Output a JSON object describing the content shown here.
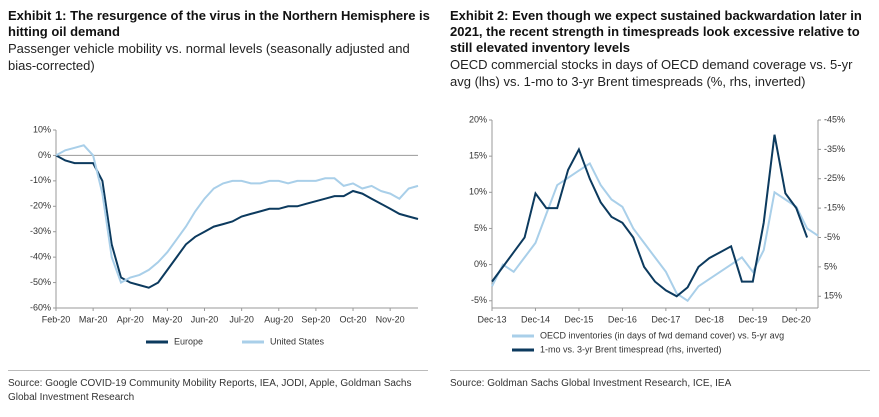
{
  "chart_data": [
    {
      "type": "line",
      "title": "Exhibit 1: The resurgence of the virus in the Northern Hemisphere is hitting oil demand",
      "subtitle": "Passenger vehicle mobility vs. normal levels (seasonally adjusted and bias-corrected)",
      "categories": [
        "Feb-20",
        null,
        null,
        null,
        "Mar-20",
        null,
        null,
        null,
        "Apr-20",
        null,
        null,
        null,
        "May-20",
        null,
        null,
        null,
        "Jun-20",
        null,
        null,
        null,
        "Jul-20",
        null,
        null,
        null,
        "Aug-20",
        null,
        null,
        null,
        "Sep-20",
        null,
        null,
        null,
        "Oct-20",
        null,
        null,
        null,
        "Nov-20",
        null,
        null,
        null
      ],
      "series": [
        {
          "name": "Europe",
          "color": "#0c3a5e",
          "values": [
            0,
            -2,
            -3,
            -3,
            -3,
            -10,
            -35,
            -48,
            -50,
            -51,
            -52,
            -50,
            -45,
            -40,
            -35,
            -32,
            -30,
            -28,
            -27,
            -26,
            -24,
            -23,
            -22,
            -21,
            -21,
            -20,
            -20,
            -19,
            -18,
            -17,
            -16,
            -16,
            -14,
            -15,
            -17,
            -19,
            -21,
            -23,
            -24,
            -25
          ]
        },
        {
          "name": "United States",
          "color": "#a9cfe9",
          "values": [
            0,
            2,
            3,
            4,
            0,
            -15,
            -40,
            -50,
            -48,
            -47,
            -45,
            -42,
            -38,
            -33,
            -28,
            -22,
            -17,
            -13,
            -11,
            -10,
            -10,
            -11,
            -11,
            -10,
            -10,
            -11,
            -10,
            -10,
            -10,
            -9,
            -9,
            -12,
            -11,
            -13,
            -12,
            -14,
            -15,
            -17,
            -13,
            -12
          ]
        }
      ],
      "ylim": [
        -60,
        10
      ],
      "yticks": [
        {
          "value": -60,
          "label": "-60%"
        },
        {
          "value": -50,
          "label": "-50%"
        },
        {
          "value": -40,
          "label": "-40%"
        },
        {
          "value": -30,
          "label": "-30%"
        },
        {
          "value": -20,
          "label": "-20%"
        },
        {
          "value": -10,
          "label": "-10%"
        },
        {
          "value": 0,
          "label": "0%"
        },
        {
          "value": 10,
          "label": "10%"
        }
      ],
      "legend": "bottom",
      "source": "Source: Google COVID-19 Community Mobility Reports, IEA, JODI, Apple, Goldman Sachs Global Investment Research"
    },
    {
      "type": "line",
      "title": "Exhibit 2: Even though we expect sustained backwardation later in 2021, the recent strength in timespreads look excessive relative to still elevated inventory levels",
      "subtitle": "OECD commercial stocks in days of OECD demand coverage vs. 5-yr avg (lhs) vs. 1-mo to 3-yr Brent timespreads (%, rhs, inverted)",
      "categories": [
        "Dec-13",
        null,
        null,
        null,
        "Dec-14",
        null,
        null,
        null,
        "Dec-15",
        null,
        null,
        null,
        "Dec-16",
        null,
        null,
        null,
        "Dec-17",
        null,
        null,
        null,
        "Dec-18",
        null,
        null,
        null,
        "Dec-19",
        null,
        null,
        null,
        "Dec-20",
        null,
        null
      ],
      "series": [
        {
          "name": "OECD inventories (in days of fwd demand cover) vs. 5-yr avg",
          "color": "#a9cfe9",
          "values": [
            -3,
            0,
            -1,
            1,
            3,
            7,
            11,
            12,
            13,
            14,
            11,
            9,
            8,
            5,
            3,
            1,
            -1,
            -4,
            -5,
            -3,
            -2,
            -1,
            0,
            1,
            -1,
            2,
            10,
            9,
            8,
            5,
            4
          ]
        },
        {
          "name": "1-mo vs. 3-yr Brent timespread (rhs, inverted)",
          "color": "#0c3a5e",
          "axis": "y2",
          "values": [
            10,
            5,
            0,
            -5,
            -20,
            -15,
            -15,
            -28,
            -35,
            -25,
            -17,
            -12,
            -10,
            -5,
            5,
            10,
            13,
            15,
            12,
            5,
            2,
            0,
            -2,
            10,
            10,
            -10,
            -40,
            -20,
            -15,
            -5,
            null
          ]
        }
      ],
      "ylim": [
        -6,
        20
      ],
      "yticks": [
        {
          "value": -5,
          "label": "-5%"
        },
        {
          "value": 0,
          "label": "0%"
        },
        {
          "value": 5,
          "label": "5%"
        },
        {
          "value": 10,
          "label": "10%"
        },
        {
          "value": 15,
          "label": "15%"
        },
        {
          "value": 20,
          "label": "20%"
        }
      ],
      "y2lim": [
        -45,
        19
      ],
      "y2_inverted": true,
      "y2ticks": [
        {
          "value": -45,
          "label": "-45%"
        },
        {
          "value": -35,
          "label": "-35%"
        },
        {
          "value": -25,
          "label": "-25%"
        },
        {
          "value": -15,
          "label": "-15%"
        },
        {
          "value": -5,
          "label": "-5%"
        },
        {
          "value": 5,
          "label": "5%"
        },
        {
          "value": 15,
          "label": "15%"
        }
      ],
      "legend": "bottom",
      "source": "Source: Goldman Sachs Global Investment Research, ICE, IEA"
    }
  ]
}
